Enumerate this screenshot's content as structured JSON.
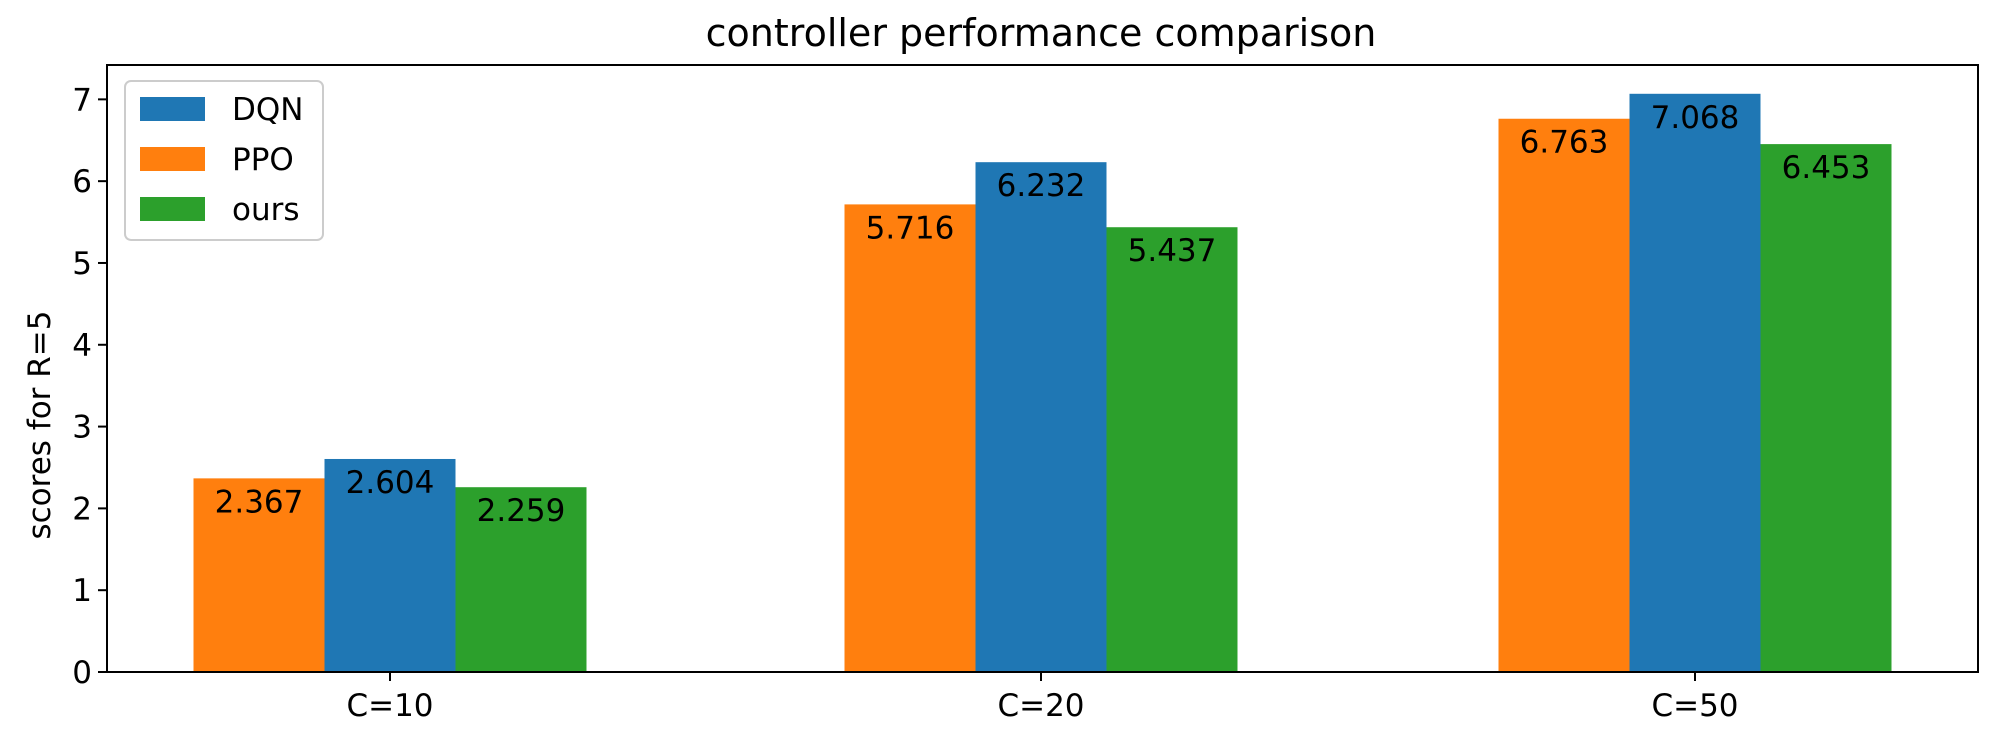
{
  "chart_data": {
    "type": "bar",
    "title": "controller performance comparison",
    "xlabel": "",
    "ylabel": "scores for R=5",
    "categories": [
      "C=10",
      "C=20",
      "C=50"
    ],
    "series": [
      {
        "name": "PPO",
        "color": "#ff7f0e",
        "values": [
          2.367,
          5.716,
          6.763
        ],
        "labels": [
          "2.367",
          "5.716",
          "6.763"
        ]
      },
      {
        "name": "DQN",
        "color": "#1f77b4",
        "values": [
          2.604,
          6.232,
          7.068
        ],
        "labels": [
          "2.604",
          "6.232",
          "7.068"
        ]
      },
      {
        "name": "ours",
        "color": "#2ca02c",
        "values": [
          2.259,
          5.437,
          6.453
        ],
        "labels": [
          "2.259",
          "5.437",
          "6.453"
        ]
      }
    ],
    "ylim": [
      0,
      7.42
    ],
    "yticks": [
      "0",
      "1",
      "2",
      "3",
      "4",
      "5",
      "6",
      "7"
    ],
    "legend": {
      "placement": "upper-left",
      "entries": [
        {
          "name": "DQN",
          "color": "#1f77b4"
        },
        {
          "name": "PPO",
          "color": "#ff7f0e"
        },
        {
          "name": "ours",
          "color": "#2ca02c"
        }
      ]
    },
    "grid": false
  }
}
